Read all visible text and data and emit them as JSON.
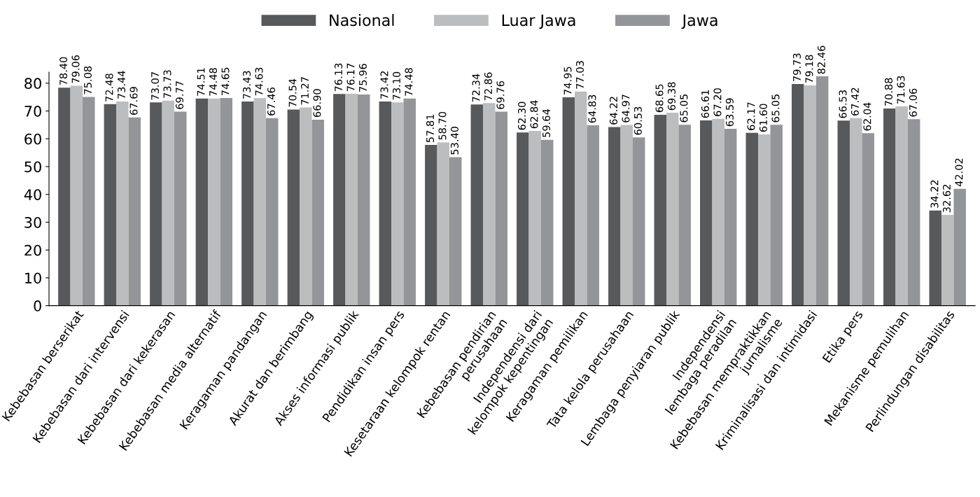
{
  "chart_data": {
    "type": "bar",
    "categories": [
      "Kebebasan berserikat",
      "Kebebasan dari intervensi",
      "Kebebasan dari kekerasan",
      "Kebebasan media alternatif",
      "Keragaman pandangan",
      "Akurat dan berimbang",
      "Akses informasi publik",
      "Pendidikan insan pers",
      "Kesetaraan kelompok rentan",
      "Kebebasan pendirian\nperusahaan",
      "Independensi dari\nkelompok kepentingan",
      "Keragaman pemilikan",
      "Tata kelola perusahaan",
      "Lembaga penyiaran publik",
      "Independensi\nlembaga peradilan",
      "Kebebasan mempraktikkan\njurnalisme",
      "Kriminalisasi dan intimidasi",
      "Etika pers",
      "Mekanisme pemulihan",
      "Perlindungan disabilitas"
    ],
    "series": [
      {
        "name": "Nasional",
        "color": "#58595b",
        "values": [
          78.4,
          72.48,
          73.07,
          74.51,
          73.43,
          70.54,
          76.13,
          73.42,
          57.81,
          72.34,
          62.3,
          74.95,
          64.22,
          68.65,
          66.61,
          62.17,
          79.73,
          66.53,
          70.88,
          34.22
        ],
        "value_labels": [
          "78.40",
          "72.48",
          "73.07",
          "74.51",
          "73.43",
          "70.54",
          "76.13",
          "73.42",
          "57.81",
          "72.34",
          "62.30",
          "74.95",
          "64.22",
          "68.65",
          "66.61",
          "62.17",
          "79.73",
          "66.53",
          "70.88",
          "34.22"
        ]
      },
      {
        "name": "Luar Jawa",
        "color": "#bcbdbf",
        "values": [
          79.06,
          73.44,
          73.73,
          74.48,
          74.63,
          71.27,
          76.17,
          73.1,
          58.7,
          72.86,
          62.84,
          77.03,
          64.97,
          69.38,
          67.2,
          61.6,
          79.18,
          67.42,
          71.63,
          32.62
        ],
        "value_labels": [
          "79.06",
          "73.44",
          "73.73",
          "74.48",
          "74.63",
          "71.27",
          "76.17",
          "73.10",
          "58.70",
          "72.86",
          "62.84",
          "77.03",
          "64.97",
          "69.38",
          "67.20",
          "61.60",
          "79.18",
          "67.42",
          "71.63",
          "32.62"
        ]
      },
      {
        "name": "Jawa",
        "color": "#939598",
        "values": [
          75.08,
          67.69,
          69.77,
          74.65,
          67.46,
          66.9,
          75.96,
          74.48,
          53.4,
          69.76,
          59.64,
          64.83,
          60.53,
          65.05,
          63.59,
          65.05,
          82.46,
          62.04,
          67.06,
          42.02
        ],
        "value_labels": [
          "75.08",
          "67.69",
          "69.77",
          "74.65",
          "67.46",
          "66.90",
          "75.96",
          "74.48",
          "53.40",
          "69.76",
          "59.64",
          "64.83",
          "60.53",
          "65.05",
          "63.59",
          "65.05",
          "82.46",
          "62.04",
          "67.06",
          "42.02"
        ]
      }
    ],
    "ylim": [
      0,
      84
    ],
    "yticks": [
      0,
      10,
      20,
      30,
      40,
      50,
      60,
      70,
      80
    ],
    "legend": "top",
    "grid": false
  }
}
